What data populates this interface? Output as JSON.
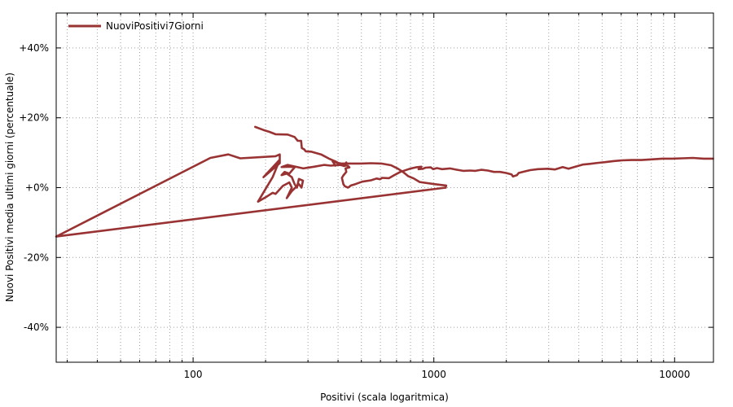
{
  "chart_data": {
    "type": "line",
    "xlabel": "Positivi (scala logaritmica)",
    "ylabel": "Nuovi Positivi media ultimi giorni (percentuale)",
    "x_scale": "log",
    "xlim": [
      27,
      14500
    ],
    "ylim": [
      -50,
      50
    ],
    "x_ticks": [
      {
        "value": 100,
        "label": "100"
      },
      {
        "value": 1000,
        "label": "1000"
      },
      {
        "value": 10000,
        "label": "10000"
      }
    ],
    "y_ticks": [
      {
        "value": 40,
        "label": "+40%"
      },
      {
        "value": 20,
        "label": "+20%"
      },
      {
        "value": 0,
        "label": "+0%"
      },
      {
        "value": -20,
        "label": "-20%"
      },
      {
        "value": -40,
        "label": "-40%"
      }
    ],
    "grid": true,
    "legend_position": "top-left",
    "series": [
      {
        "name": "NuoviPositivi7Giorni",
        "color": "#993333",
        "points": [
          [
            1120,
            0
          ],
          [
            27,
            -14
          ],
          [
            118,
            8.5
          ],
          [
            140,
            9.5
          ],
          [
            157,
            8.4
          ],
          [
            220,
            9
          ],
          [
            229,
            9.5
          ],
          [
            229,
            7
          ],
          [
            196,
            3
          ],
          [
            229,
            8
          ],
          [
            214,
            3
          ],
          [
            186,
            -4
          ],
          [
            203,
            -2.5
          ],
          [
            214,
            -1.5
          ],
          [
            220,
            -1.8
          ],
          [
            236,
            0.5
          ],
          [
            251,
            1.5
          ],
          [
            257,
            0
          ],
          [
            245,
            -3
          ],
          [
            257,
            -1
          ],
          [
            275,
            1
          ],
          [
            282,
            0
          ],
          [
            286,
            2
          ],
          [
            275,
            2.5
          ],
          [
            270,
            0
          ],
          [
            264,
            1
          ],
          [
            257,
            3
          ],
          [
            245,
            4
          ],
          [
            233,
            3.6
          ],
          [
            240,
            4.5
          ],
          [
            251,
            4
          ],
          [
            264,
            5.8
          ],
          [
            254,
            6
          ],
          [
            233,
            5.9
          ],
          [
            247,
            6.5
          ],
          [
            287,
            5.5
          ],
          [
            318,
            6
          ],
          [
            350,
            6.5
          ],
          [
            373,
            6.3
          ],
          [
            407,
            6.5
          ],
          [
            427,
            6.2
          ],
          [
            433,
            7.2
          ],
          [
            421,
            6.2
          ],
          [
            407,
            7
          ],
          [
            390,
            6.3
          ],
          [
            380,
            7.5
          ],
          [
            440,
            6.2
          ],
          [
            446,
            5.8
          ],
          [
            430,
            5.5
          ],
          [
            433,
            4.5
          ],
          [
            421,
            3.5
          ],
          [
            415,
            2.8
          ],
          [
            421,
            1
          ],
          [
            427,
            0.4
          ],
          [
            440,
            0
          ],
          [
            452,
            0.6
          ],
          [
            472,
            1
          ],
          [
            504,
            1.7
          ],
          [
            548,
            2.1
          ],
          [
            578,
            2.6
          ],
          [
            598,
            2.4
          ],
          [
            610,
            2.8
          ],
          [
            651,
            2.7
          ],
          [
            685,
            3.6
          ],
          [
            726,
            4.5
          ],
          [
            795,
            5.4
          ],
          [
            842,
            5.8
          ],
          [
            888,
            6
          ],
          [
            864,
            5.3
          ],
          [
            901,
            5.4
          ],
          [
            923,
            5.7
          ],
          [
            970,
            5.8
          ],
          [
            994,
            5.3
          ],
          [
            1030,
            5.6
          ],
          [
            1082,
            5.3
          ],
          [
            1167,
            5.5
          ],
          [
            1250,
            5.1
          ],
          [
            1325,
            4.8
          ],
          [
            1415,
            4.9
          ],
          [
            1486,
            4.8
          ],
          [
            1574,
            5.1
          ],
          [
            1675,
            4.9
          ],
          [
            1776,
            4.5
          ],
          [
            1882,
            4.5
          ],
          [
            1995,
            4.2
          ],
          [
            2101,
            3.8
          ],
          [
            2133,
            3.2
          ],
          [
            2215,
            3.6
          ],
          [
            2250,
            4.2
          ],
          [
            2373,
            4.6
          ],
          [
            2514,
            5
          ],
          [
            2705,
            5.3
          ],
          [
            2976,
            5.4
          ],
          [
            3179,
            5.2
          ],
          [
            3430,
            5.9
          ],
          [
            3624,
            5.4
          ],
          [
            3876,
            6
          ],
          [
            4151,
            6.6
          ],
          [
            4445,
            6.8
          ],
          [
            4835,
            7.1
          ],
          [
            5140,
            7.3
          ],
          [
            5567,
            7.6
          ],
          [
            6041,
            7.8
          ],
          [
            6621,
            7.9
          ],
          [
            7283,
            7.9
          ],
          [
            8014,
            8.1
          ],
          [
            8882,
            8.3
          ],
          [
            9754,
            8.3
          ],
          [
            10735,
            8.4
          ],
          [
            11896,
            8.5
          ],
          [
            13211,
            8.3
          ],
          [
            14445,
            8.3
          ]
        ],
        "trail_points": [
          [
            1120,
            0
          ],
          [
            1125,
            0.6
          ],
          [
            1005,
            1
          ],
          [
            873,
            1.6
          ],
          [
            826,
            2.6
          ],
          [
            781,
            3.3
          ],
          [
            741,
            4.6
          ],
          [
            710,
            5.4
          ],
          [
            664,
            6.4
          ],
          [
            605,
            6.9
          ],
          [
            548,
            7
          ],
          [
            498,
            6.9
          ],
          [
            440,
            6.9
          ],
          [
            405,
            6.9
          ],
          [
            390,
            7.5
          ],
          [
            367,
            8.3
          ],
          [
            340,
            9.5
          ],
          [
            309,
            10.3
          ],
          [
            294,
            10.4
          ],
          [
            289,
            11
          ],
          [
            283,
            11.3
          ],
          [
            281,
            13.4
          ],
          [
            272,
            13.4
          ],
          [
            264,
            14.5
          ],
          [
            247,
            15.2
          ],
          [
            220,
            15.3
          ],
          [
            207,
            16
          ],
          [
            196,
            16.5
          ],
          [
            181,
            17.4
          ]
        ]
      }
    ]
  }
}
